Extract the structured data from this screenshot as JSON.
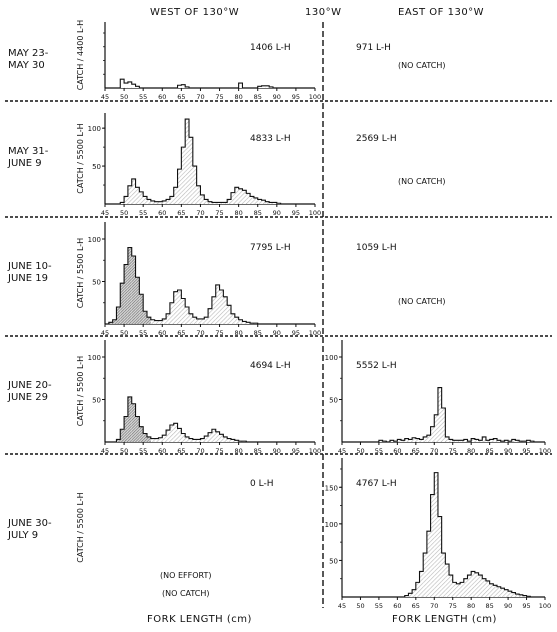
{
  "header": {
    "west": "WEST OF 130°W",
    "center": "130°W",
    "east": "EAST OF 130°W"
  },
  "footer": {
    "xlabel_left": "FORK LENGTH (cm)",
    "xlabel_right": "FORK LENGTH (cm)"
  },
  "style": {
    "ink": "#111111",
    "fill_hatch": "#b8b8b8",
    "fill_dense": "#707070"
  },
  "chart_data": [
    {
      "type": "bar",
      "period": [
        "MAY 23-",
        "MAY 30"
      ],
      "ylabel": "CATCH / 4400 L-H",
      "west": {
        "effort": "1406 L-H",
        "note": "",
        "ylim": [
          0,
          120
        ],
        "yticks": [],
        "xlim": [
          45,
          100
        ],
        "xticks": [
          "45",
          "50",
          "55",
          "60",
          "65",
          "70",
          "75",
          "80",
          "85",
          "90",
          "95",
          "100"
        ],
        "bins_start": 45,
        "bin_width": 1,
        "fill": "none",
        "values": [
          0,
          0,
          0,
          0,
          16,
          9,
          11,
          7,
          3,
          0,
          0,
          0,
          0,
          0,
          0,
          0,
          0,
          0,
          0,
          5,
          6,
          2,
          0,
          0,
          0,
          0,
          0,
          0,
          0,
          0,
          0,
          0,
          0,
          0,
          0,
          9,
          0,
          0,
          0,
          0,
          3,
          4,
          4,
          2,
          0,
          0,
          0,
          0,
          0,
          0,
          0,
          0,
          0,
          0,
          0
        ]
      },
      "east": {
        "effort": "971 L-H",
        "note": "(NO CATCH)",
        "values": []
      }
    },
    {
      "type": "bar",
      "period": [
        "MAY 31-",
        "JUNE 9"
      ],
      "ylabel": "CATCH / 5500 L-H",
      "west": {
        "effort": "4833 L-H",
        "note": "",
        "ylim": [
          0,
          120
        ],
        "yticks": [
          "50",
          "100"
        ],
        "xlim": [
          45,
          100
        ],
        "xticks": [
          "45",
          "50",
          "55",
          "60",
          "65",
          "70",
          "75",
          "80",
          "85",
          "90",
          "95",
          "100"
        ],
        "bins_start": 45,
        "bin_width": 1,
        "fill": "hatch",
        "values": [
          0,
          0,
          0,
          0,
          2,
          10,
          24,
          33,
          22,
          16,
          10,
          6,
          4,
          3,
          3,
          4,
          6,
          10,
          22,
          46,
          75,
          112,
          88,
          50,
          24,
          12,
          6,
          3,
          2,
          2,
          2,
          2,
          6,
          15,
          22,
          20,
          18,
          14,
          10,
          8,
          6,
          5,
          3,
          2,
          2,
          1,
          0,
          0,
          0,
          0,
          0,
          0,
          0,
          0,
          0
        ]
      },
      "east": {
        "effort": "2569 L-H",
        "note": "(NO CATCH)",
        "values": []
      }
    },
    {
      "type": "bar",
      "period": [
        "JUNE 10-",
        "JUNE 19"
      ],
      "ylabel": "CATCH / 5500 L-H",
      "west": {
        "effort": "7795 L-H",
        "note": "",
        "ylim": [
          0,
          120
        ],
        "yticks": [
          "50",
          "100"
        ],
        "xlim": [
          45,
          100
        ],
        "xticks": [
          "45",
          "50",
          "55",
          "60",
          "65",
          "70",
          "75",
          "80",
          "85",
          "90",
          "95",
          "100"
        ],
        "bins_start": 45,
        "bin_width": 1,
        "fill": "dense-then-hatch",
        "values": [
          0,
          2,
          5,
          20,
          48,
          70,
          90,
          80,
          55,
          35,
          15,
          8,
          5,
          4,
          4,
          6,
          12,
          25,
          38,
          40,
          30,
          20,
          12,
          8,
          6,
          6,
          8,
          18,
          32,
          46,
          40,
          32,
          22,
          12,
          8,
          5,
          3,
          2,
          1,
          1,
          0,
          0,
          0,
          0,
          0,
          0,
          0,
          0,
          0,
          0,
          0,
          0,
          0,
          0,
          0
        ]
      },
      "east": {
        "effort": "1059 L-H",
        "note": "(NO CATCH)",
        "values": []
      }
    },
    {
      "type": "bar",
      "period": [
        "JUNE 20-",
        "JUNE 29"
      ],
      "ylabel": "CATCH / 5500 L-H",
      "west": {
        "effort": "4694 L-H",
        "note": "",
        "ylim": [
          0,
          120
        ],
        "yticks": [
          "50",
          "100"
        ],
        "xlim": [
          45,
          100
        ],
        "xticks": [
          "45",
          "50",
          "55",
          "60",
          "65",
          "70",
          "75",
          "80",
          "85",
          "90",
          "95",
          "100"
        ],
        "bins_start": 45,
        "bin_width": 1,
        "fill": "dense-then-hatch",
        "values": [
          0,
          0,
          0,
          3,
          15,
          30,
          53,
          45,
          30,
          18,
          10,
          6,
          4,
          4,
          5,
          8,
          14,
          20,
          22,
          16,
          10,
          6,
          4,
          3,
          3,
          4,
          7,
          11,
          15,
          12,
          9,
          6,
          4,
          3,
          2,
          1,
          1,
          0,
          0,
          0,
          0,
          0,
          0,
          0,
          0,
          0,
          0,
          0,
          0,
          0,
          0,
          0,
          0,
          0,
          0
        ]
      },
      "east": {
        "effort": "5552 L-H",
        "note": "",
        "ylim": [
          0,
          120
        ],
        "yticks": [
          "50",
          "100"
        ],
        "xlim": [
          45,
          100
        ],
        "xticks": [
          "45",
          "50",
          "55",
          "60",
          "65",
          "70",
          "75",
          "80",
          "85",
          "90",
          "95",
          "100"
        ],
        "bins_start": 45,
        "bin_width": 1,
        "fill": "light",
        "values": [
          0,
          0,
          0,
          0,
          0,
          0,
          0,
          0,
          0,
          0,
          2,
          1,
          0,
          2,
          1,
          3,
          2,
          4,
          3,
          5,
          4,
          3,
          6,
          8,
          18,
          32,
          64,
          40,
          6,
          3,
          2,
          2,
          2,
          3,
          1,
          4,
          3,
          2,
          6,
          2,
          3,
          4,
          2,
          1,
          2,
          1,
          3,
          2,
          1,
          1,
          2,
          1,
          0,
          0,
          0
        ]
      }
    },
    {
      "type": "bar",
      "period": [
        "JUNE 30-",
        "JULY 9"
      ],
      "ylabel": "CATCH / 5500 L-H",
      "west": {
        "effort": "0 L-H",
        "note": "(NO EFFORT)",
        "note2": "(NO CATCH)",
        "values": []
      },
      "east": {
        "effort": "4767 L-H",
        "note": "",
        "ylim": [
          0,
          190
        ],
        "yticks": [
          "50",
          "100",
          "150"
        ],
        "xlim": [
          45,
          100
        ],
        "xticks": [
          "45",
          "50",
          "55",
          "60",
          "65",
          "70",
          "75",
          "80",
          "85",
          "90",
          "95",
          "100"
        ],
        "bins_start": 45,
        "bin_width": 1,
        "fill": "light",
        "values": [
          0,
          0,
          0,
          0,
          0,
          0,
          0,
          0,
          0,
          0,
          0,
          0,
          0,
          0,
          0,
          0,
          0,
          2,
          5,
          10,
          20,
          35,
          60,
          90,
          140,
          170,
          110,
          60,
          45,
          30,
          20,
          18,
          20,
          25,
          30,
          35,
          33,
          30,
          25,
          22,
          18,
          16,
          14,
          12,
          10,
          8,
          6,
          4,
          3,
          2,
          1,
          0,
          0,
          0,
          0
        ]
      }
    }
  ]
}
